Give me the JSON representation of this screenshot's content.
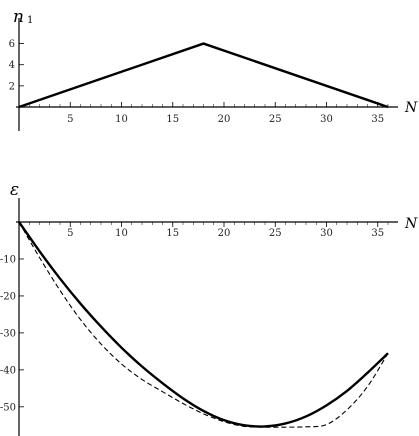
{
  "chart_data": [
    {
      "type": "line",
      "ylabel": "n",
      "ylabel_sub": "1",
      "xlabel": "N",
      "xlim": [
        0,
        36
      ],
      "ylim": [
        0,
        7
      ],
      "x_ticks": [
        5,
        10,
        15,
        20,
        25,
        30,
        35
      ],
      "x_tick_labels": [
        "5",
        "10",
        "15",
        "20",
        "25",
        "30",
        "35"
      ],
      "y_ticks": [
        2,
        4,
        6
      ],
      "y_tick_labels": [
        "2",
        "4",
        "6"
      ],
      "grid": false,
      "series": [
        {
          "style": "solid",
          "x": [
            0,
            18,
            36
          ],
          "y": [
            0,
            6,
            0
          ]
        }
      ]
    },
    {
      "type": "line",
      "ylabel": "ε",
      "xlabel": "N",
      "xlim": [
        0,
        36
      ],
      "ylim": [
        -56,
        0
      ],
      "x_ticks": [
        5,
        10,
        15,
        20,
        25,
        30,
        35
      ],
      "x_tick_labels": [
        "5",
        "10",
        "15",
        "20",
        "25",
        "30",
        "35"
      ],
      "y_ticks": [
        -10,
        -20,
        -30,
        -40,
        -50
      ],
      "y_tick_labels": [
        "-10",
        "-20",
        "-30",
        "-40",
        "-50"
      ],
      "grid": false,
      "series": [
        {
          "style": "solid",
          "x": [
            0,
            2,
            4,
            6,
            8,
            10,
            12,
            14,
            16,
            18,
            20,
            22,
            24,
            26,
            28,
            30,
            32,
            34,
            36
          ],
          "y": [
            0,
            -7.9,
            -15.3,
            -22.1,
            -28.3,
            -34.0,
            -39.1,
            -43.6,
            -47.7,
            -51.1,
            -53.6,
            -55.0,
            -55.3,
            -54.5,
            -52.6,
            -49.6,
            -45.7,
            -40.8,
            -35.5
          ]
        },
        {
          "style": "dashed",
          "x": [
            0,
            2,
            4,
            6,
            8,
            10,
            12,
            14,
            16,
            18,
            20,
            22,
            24,
            26,
            28,
            30,
            32,
            34,
            36
          ],
          "y": [
            0,
            -9.6,
            -18.5,
            -26.4,
            -33.0,
            -38.4,
            -42.6,
            -45.9,
            -49.1,
            -51.9,
            -54.0,
            -55.3,
            -55.5,
            -55.5,
            -55.4,
            -54.8,
            -50.8,
            -44.5,
            -35.5
          ]
        }
      ]
    }
  ]
}
